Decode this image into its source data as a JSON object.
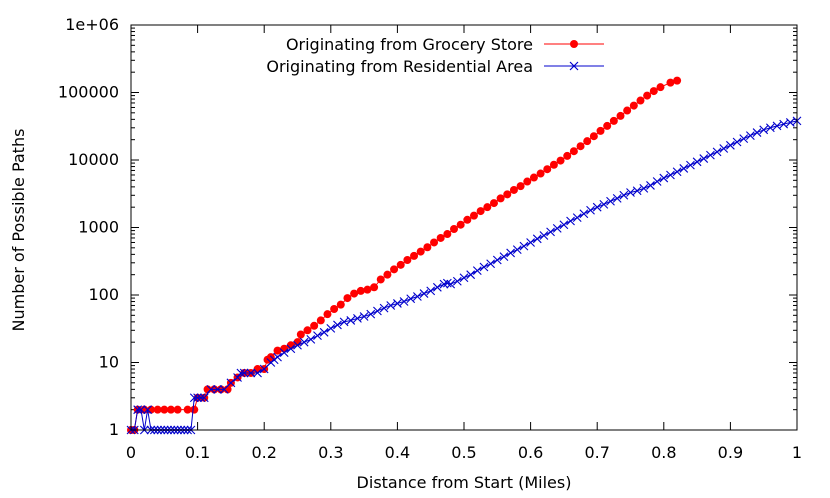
{
  "chart_data": {
    "type": "scatter",
    "xlabel": "Distance from Start (Miles)",
    "ylabel": "Number of Possible Paths",
    "xlim": [
      0,
      1
    ],
    "ylim": [
      1,
      1000000
    ],
    "yscale": "log",
    "xticks": [
      "0",
      "0.1",
      "0.2",
      "0.3",
      "0.4",
      "0.5",
      "0.6",
      "0.7",
      "0.8",
      "0.9",
      "1"
    ],
    "yticks": [
      "1",
      "10",
      "100",
      "1000",
      "10000",
      "100000",
      "1e+06"
    ],
    "legend_position": "top-center",
    "grid": false,
    "series": [
      {
        "name": "Originating from Grocery Store",
        "color": "#ff0000",
        "marker": "filled-circle",
        "points": [
          [
            0.0,
            1
          ],
          [
            0.005,
            1
          ],
          [
            0.01,
            2
          ],
          [
            0.02,
            2
          ],
          [
            0.03,
            2
          ],
          [
            0.04,
            2
          ],
          [
            0.05,
            2
          ],
          [
            0.06,
            2
          ],
          [
            0.07,
            2
          ],
          [
            0.085,
            2
          ],
          [
            0.095,
            2
          ],
          [
            0.1,
            3
          ],
          [
            0.11,
            3
          ],
          [
            0.115,
            4
          ],
          [
            0.125,
            4
          ],
          [
            0.135,
            4
          ],
          [
            0.145,
            4
          ],
          [
            0.15,
            5
          ],
          [
            0.16,
            6
          ],
          [
            0.17,
            7
          ],
          [
            0.18,
            7
          ],
          [
            0.19,
            8
          ],
          [
            0.2,
            8
          ],
          [
            0.205,
            11
          ],
          [
            0.21,
            12
          ],
          [
            0.22,
            15
          ],
          [
            0.23,
            16
          ],
          [
            0.24,
            18
          ],
          [
            0.25,
            20
          ],
          [
            0.255,
            26
          ],
          [
            0.265,
            30
          ],
          [
            0.275,
            35
          ],
          [
            0.285,
            42
          ],
          [
            0.295,
            52
          ],
          [
            0.305,
            62
          ],
          [
            0.315,
            72
          ],
          [
            0.325,
            90
          ],
          [
            0.335,
            105
          ],
          [
            0.345,
            115
          ],
          [
            0.355,
            120
          ],
          [
            0.365,
            130
          ],
          [
            0.375,
            170
          ],
          [
            0.385,
            200
          ],
          [
            0.395,
            240
          ],
          [
            0.405,
            280
          ],
          [
            0.415,
            330
          ],
          [
            0.425,
            380
          ],
          [
            0.435,
            440
          ],
          [
            0.445,
            510
          ],
          [
            0.455,
            600
          ],
          [
            0.465,
            700
          ],
          [
            0.475,
            800
          ],
          [
            0.485,
            950
          ],
          [
            0.495,
            1100
          ],
          [
            0.505,
            1300
          ],
          [
            0.515,
            1500
          ],
          [
            0.525,
            1750
          ],
          [
            0.535,
            2000
          ],
          [
            0.545,
            2300
          ],
          [
            0.555,
            2700
          ],
          [
            0.565,
            3100
          ],
          [
            0.575,
            3600
          ],
          [
            0.585,
            4100
          ],
          [
            0.595,
            4800
          ],
          [
            0.605,
            5500
          ],
          [
            0.615,
            6300
          ],
          [
            0.625,
            7300
          ],
          [
            0.635,
            8500
          ],
          [
            0.645,
            9800
          ],
          [
            0.655,
            11500
          ],
          [
            0.665,
            13500
          ],
          [
            0.675,
            16000
          ],
          [
            0.685,
            19000
          ],
          [
            0.695,
            22500
          ],
          [
            0.705,
            27000
          ],
          [
            0.715,
            32000
          ],
          [
            0.725,
            38000
          ],
          [
            0.735,
            45000
          ],
          [
            0.745,
            54000
          ],
          [
            0.755,
            64000
          ],
          [
            0.765,
            76000
          ],
          [
            0.775,
            90000
          ],
          [
            0.785,
            105000
          ],
          [
            0.795,
            120000
          ],
          [
            0.81,
            140000
          ],
          [
            0.82,
            150000
          ]
        ]
      },
      {
        "name": "Originating from Residential Area",
        "color": "#0000cc",
        "marker": "x",
        "points": [
          [
            0.0,
            1
          ],
          [
            0.005,
            1
          ],
          [
            0.01,
            2
          ],
          [
            0.015,
            2
          ],
          [
            0.02,
            1
          ],
          [
            0.025,
            2
          ],
          [
            0.03,
            1
          ],
          [
            0.035,
            1
          ],
          [
            0.04,
            1
          ],
          [
            0.045,
            1
          ],
          [
            0.05,
            1
          ],
          [
            0.055,
            1
          ],
          [
            0.06,
            1
          ],
          [
            0.065,
            1
          ],
          [
            0.07,
            1
          ],
          [
            0.075,
            1
          ],
          [
            0.08,
            1
          ],
          [
            0.085,
            1
          ],
          [
            0.09,
            1
          ],
          [
            0.095,
            3
          ],
          [
            0.1,
            3
          ],
          [
            0.105,
            3
          ],
          [
            0.11,
            3
          ],
          [
            0.12,
            4
          ],
          [
            0.13,
            4
          ],
          [
            0.14,
            4
          ],
          [
            0.15,
            5
          ],
          [
            0.16,
            6
          ],
          [
            0.165,
            7
          ],
          [
            0.17,
            7
          ],
          [
            0.18,
            7
          ],
          [
            0.19,
            7
          ],
          [
            0.2,
            8
          ],
          [
            0.21,
            10
          ],
          [
            0.215,
            11
          ],
          [
            0.22,
            12
          ],
          [
            0.23,
            14
          ],
          [
            0.24,
            16
          ],
          [
            0.25,
            18
          ],
          [
            0.26,
            20
          ],
          [
            0.27,
            22
          ],
          [
            0.28,
            25
          ],
          [
            0.29,
            28
          ],
          [
            0.3,
            32
          ],
          [
            0.31,
            36
          ],
          [
            0.32,
            40
          ],
          [
            0.33,
            42
          ],
          [
            0.34,
            45
          ],
          [
            0.35,
            48
          ],
          [
            0.36,
            52
          ],
          [
            0.37,
            58
          ],
          [
            0.38,
            64
          ],
          [
            0.39,
            70
          ],
          [
            0.4,
            75
          ],
          [
            0.41,
            80
          ],
          [
            0.42,
            88
          ],
          [
            0.43,
            95
          ],
          [
            0.44,
            105
          ],
          [
            0.45,
            115
          ],
          [
            0.46,
            130
          ],
          [
            0.47,
            145
          ],
          [
            0.475,
            150
          ],
          [
            0.48,
            145
          ],
          [
            0.49,
            160
          ],
          [
            0.5,
            180
          ],
          [
            0.51,
            200
          ],
          [
            0.52,
            230
          ],
          [
            0.53,
            260
          ],
          [
            0.54,
            290
          ],
          [
            0.55,
            330
          ],
          [
            0.56,
            370
          ],
          [
            0.57,
            420
          ],
          [
            0.58,
            470
          ],
          [
            0.59,
            530
          ],
          [
            0.6,
            600
          ],
          [
            0.61,
            680
          ],
          [
            0.62,
            760
          ],
          [
            0.63,
            860
          ],
          [
            0.64,
            970
          ],
          [
            0.65,
            1100
          ],
          [
            0.66,
            1250
          ],
          [
            0.67,
            1400
          ],
          [
            0.68,
            1600
          ],
          [
            0.69,
            1800
          ],
          [
            0.7,
            2000
          ],
          [
            0.71,
            2200
          ],
          [
            0.72,
            2450
          ],
          [
            0.73,
            2700
          ],
          [
            0.74,
            3000
          ],
          [
            0.75,
            3300
          ],
          [
            0.76,
            3500
          ],
          [
            0.77,
            3800
          ],
          [
            0.78,
            4200
          ],
          [
            0.79,
            4800
          ],
          [
            0.8,
            5400
          ],
          [
            0.81,
            6000
          ],
          [
            0.82,
            6700
          ],
          [
            0.83,
            7500
          ],
          [
            0.84,
            8400
          ],
          [
            0.85,
            9400
          ],
          [
            0.86,
            10500
          ],
          [
            0.87,
            11800
          ],
          [
            0.88,
            13200
          ],
          [
            0.89,
            14800
          ],
          [
            0.9,
            16500
          ],
          [
            0.91,
            18500
          ],
          [
            0.92,
            20700
          ],
          [
            0.93,
            23000
          ],
          [
            0.94,
            25500
          ],
          [
            0.95,
            28000
          ],
          [
            0.96,
            30000
          ],
          [
            0.97,
            32000
          ],
          [
            0.98,
            34000
          ],
          [
            0.99,
            36000
          ],
          [
            1.0,
            38000
          ]
        ]
      }
    ]
  }
}
